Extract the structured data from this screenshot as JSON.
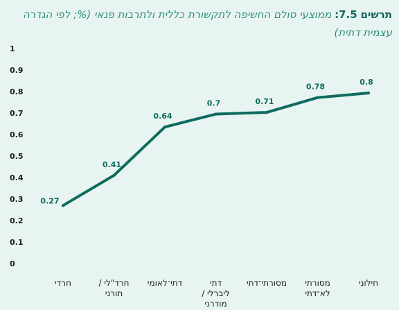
{
  "title": {
    "prefix": "תרשים",
    "number": "7.5:",
    "text": "ממוצעי סולם החשיפה לתקשורת כללית ולתרבות פנאי (%; לפי הגדרה עצמית דתית)"
  },
  "chart_data": {
    "type": "line",
    "title": "ממוצעי סולם החשיפה לתקשורת כללית ולתרבות פנאי (%; לפי הגדרה עצמית דתית)",
    "xlabel": "",
    "ylabel": "",
    "ylim": [
      0,
      1
    ],
    "yticks": [
      "0",
      "0.1",
      "0.2",
      "0.3",
      "0.4",
      "0.5",
      "0.6",
      "0.7",
      "0.8",
      "0.9",
      "1"
    ],
    "grid": false,
    "line_color": "#0f6b5f",
    "categories": [
      [
        "חרדי"
      ],
      [
        "חרד\"לי /",
        "תורני"
      ],
      [
        "דתי־לאומי"
      ],
      [
        "דתי",
        "ליברלי /",
        "מודרני"
      ],
      [
        "מסורתי־דתי"
      ],
      [
        "מסורתי",
        "לא־דתי"
      ],
      [
        "חילוני"
      ]
    ],
    "values": [
      0.27,
      0.41,
      0.64,
      0.7,
      0.71,
      0.78,
      0.8
    ],
    "data_labels": [
      "0.27",
      "0.41",
      "0.64",
      "0.7",
      "0.71",
      "0.78",
      "0.8"
    ],
    "y_values": [
      0.27,
      0.41,
      0.635,
      0.695,
      0.703,
      0.772,
      0.793
    ]
  }
}
